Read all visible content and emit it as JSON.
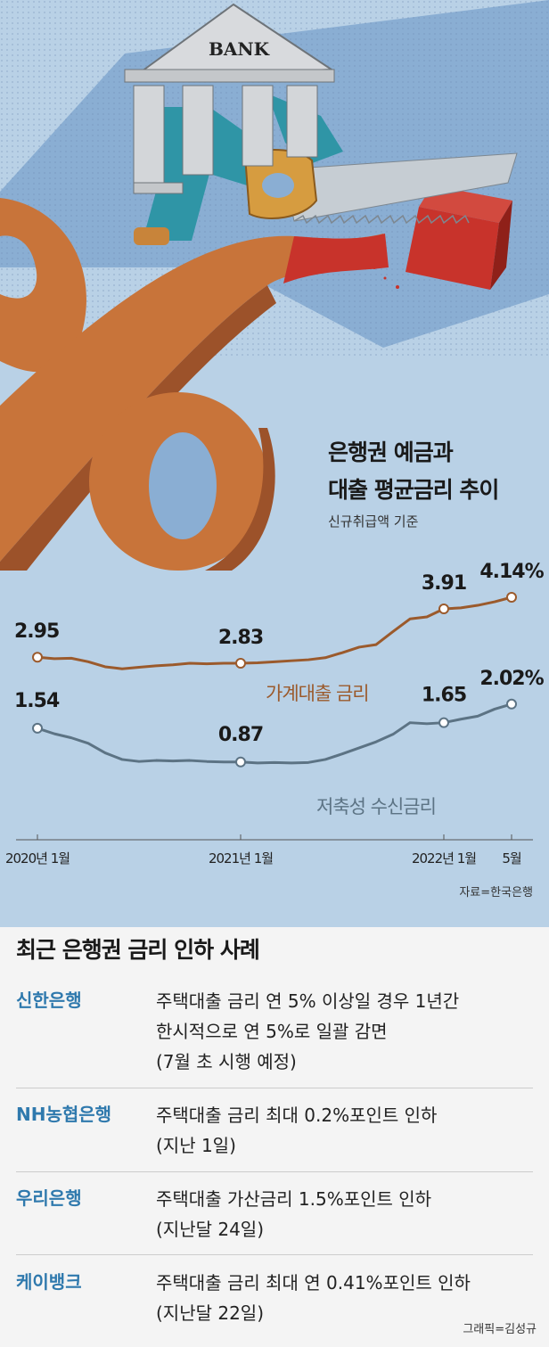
{
  "illustration": {
    "bank_sign": "BANK",
    "colors": {
      "percent": "#c8743a",
      "blade": "#c6cdd3",
      "handle": "#d69c40",
      "block": "#c8332b",
      "suit": "#2f95a6"
    }
  },
  "chart_title_line1": "은행권 예금과",
  "chart_title_line2": "대출 평균금리 추이",
  "chart_subtitle": "신규취급액 기준",
  "source": "자료=한국은행",
  "chart_data": {
    "type": "line",
    "title": "은행권 예금과 대출 평균금리 추이",
    "subtitle": "신규취급액 기준",
    "x_tick_labels": [
      "2020년 1월",
      "2021년 1월",
      "2022년 1월",
      "5월"
    ],
    "x_tick_index": [
      0,
      12,
      24,
      28
    ],
    "ylim": [
      0,
      4.5
    ],
    "series": [
      {
        "name": "가계대출 금리",
        "color": "#9b5a2c",
        "values": [
          2.95,
          2.92,
          2.93,
          2.86,
          2.76,
          2.72,
          2.75,
          2.78,
          2.8,
          2.83,
          2.82,
          2.83,
          2.83,
          2.84,
          2.86,
          2.88,
          2.9,
          2.94,
          3.04,
          3.15,
          3.2,
          3.46,
          3.71,
          3.75,
          3.91,
          3.93,
          3.98,
          4.05,
          4.14
        ],
        "labels": [
          {
            "index": 0,
            "text": "2.95"
          },
          {
            "index": 12,
            "text": "2.83"
          },
          {
            "index": 24,
            "text": "3.91"
          },
          {
            "index": 28,
            "text": "4.14%"
          }
        ]
      },
      {
        "name": "저축성 수신금리",
        "color": "#5c7384",
        "values": [
          1.54,
          1.43,
          1.35,
          1.24,
          1.05,
          0.92,
          0.88,
          0.9,
          0.89,
          0.9,
          0.88,
          0.87,
          0.87,
          0.85,
          0.86,
          0.85,
          0.86,
          0.92,
          1.03,
          1.15,
          1.27,
          1.42,
          1.65,
          1.63,
          1.65,
          1.72,
          1.78,
          1.92,
          2.02
        ],
        "labels": [
          {
            "index": 0,
            "text": "1.54"
          },
          {
            "index": 12,
            "text": "0.87"
          },
          {
            "index": 24,
            "text": "1.65"
          },
          {
            "index": 28,
            "text": "2.02%"
          }
        ]
      }
    ]
  },
  "section_title": "최근 은행권 금리 인하 사례",
  "cases": [
    {
      "bank": "신한은행",
      "lines": [
        "주택대출 금리 연 5% 이상일 경우 1년간",
        "한시적으로 연 5%로 일괄 감면",
        "(7월 초 시행 예정)"
      ]
    },
    {
      "bank": "NH농협은행",
      "lines": [
        "주택대출 금리 최대 0.2%포인트 인하",
        "(지난 1일)"
      ]
    },
    {
      "bank": "우리은행",
      "lines": [
        "주택대출 가산금리 1.5%포인트 인하",
        "(지난달 24일)"
      ]
    },
    {
      "bank": "케이뱅크",
      "lines": [
        "주택대출 금리 최대 연 0.41%포인트 인하",
        "(지난달 22일)"
      ]
    }
  ],
  "credit": "그래픽=김성규"
}
